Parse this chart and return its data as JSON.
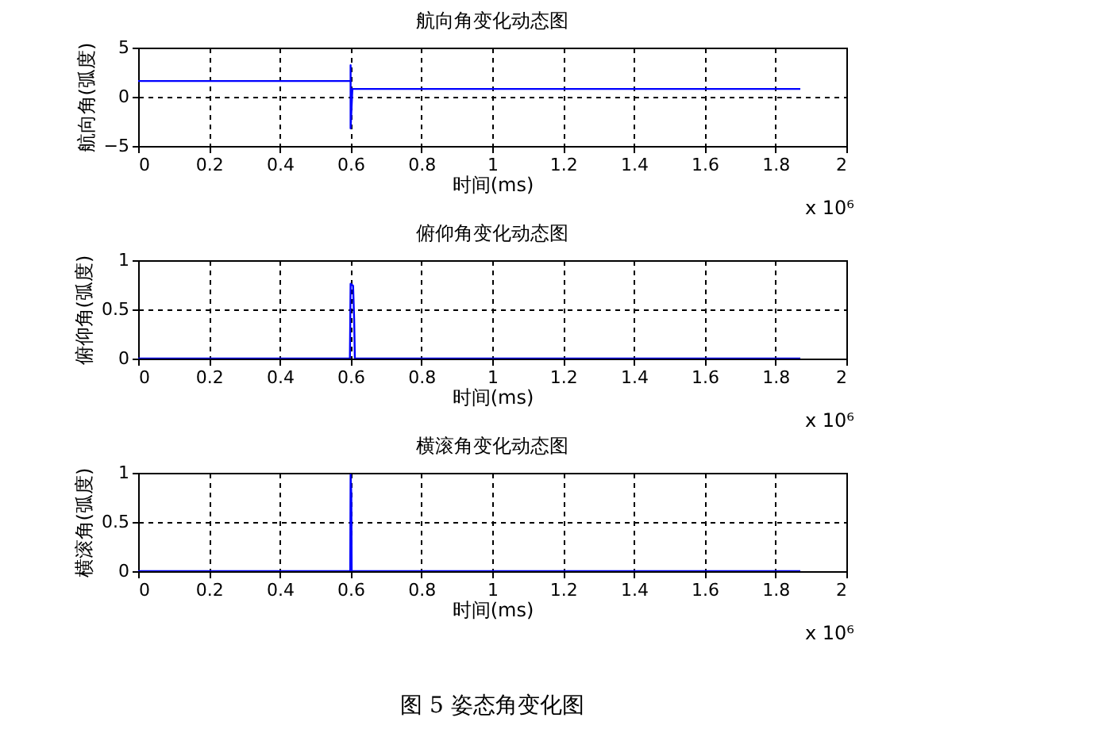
{
  "chart_data": [
    {
      "type": "line",
      "title": "航向角变化动态图",
      "xlabel": "时间(ms)",
      "ylabel": "航向角(弧度)",
      "x": [
        0,
        0.6,
        0.6,
        0.6,
        0.605,
        1.87
      ],
      "series": [
        {
          "color": "#0000ff",
          "values": [
            1.6,
            1.6,
            3.2,
            -3.2,
            0.8,
            0.8
          ]
        }
      ],
      "xlim": [
        0,
        2
      ],
      "xticks": [
        0,
        0.2,
        0.4,
        0.6,
        0.8,
        1,
        1.2,
        1.4,
        1.6,
        1.8,
        2
      ],
      "ylim": [
        -5,
        5
      ],
      "yticks": [
        -5,
        0,
        5
      ],
      "grid": true,
      "annotations": [
        "x 10⁶"
      ]
    },
    {
      "type": "line",
      "title": "俯仰角变化动态图",
      "xlabel": "时间(ms)",
      "ylabel": "俯仰角(弧度)",
      "x": [
        0,
        0.598,
        0.6,
        0.607,
        0.61,
        0.612,
        1.87
      ],
      "series": [
        {
          "color": "#0000ff",
          "values": [
            0,
            0,
            0.76,
            0.74,
            0.4,
            0,
            0
          ]
        }
      ],
      "xlim": [
        0,
        2
      ],
      "xticks": [
        0,
        0.2,
        0.4,
        0.6,
        0.8,
        1,
        1.2,
        1.4,
        1.6,
        1.8,
        2
      ],
      "ylim": [
        0,
        1
      ],
      "yticks": [
        0,
        0.5,
        1
      ],
      "grid": true,
      "annotations": [
        "x 10⁶"
      ]
    },
    {
      "type": "line",
      "title": "横滚角变化动态图",
      "xlabel": "时间(ms)",
      "ylabel": "横滚角(弧度)",
      "x": [
        0,
        0.599,
        0.6,
        0.602,
        0.603,
        1.87
      ],
      "series": [
        {
          "color": "#0000ff",
          "values": [
            0,
            0,
            0.98,
            0.78,
            0,
            0
          ]
        }
      ],
      "xlim": [
        0,
        2
      ],
      "xticks": [
        0,
        0.2,
        0.4,
        0.6,
        0.8,
        1,
        1.2,
        1.4,
        1.6,
        1.8,
        2
      ],
      "ylim": [
        0,
        1
      ],
      "yticks": [
        0,
        0.5,
        1
      ],
      "grid": true,
      "annotations": [
        "x 10⁶",
        "图 5  姿态角变化图"
      ]
    }
  ]
}
